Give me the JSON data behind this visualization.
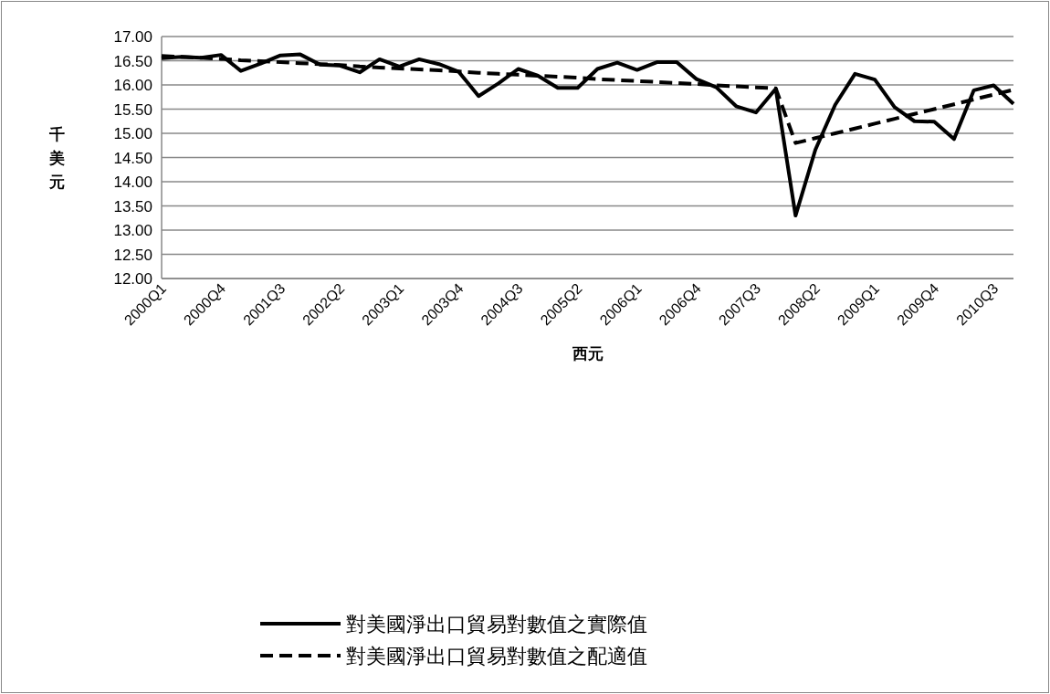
{
  "chart_data": {
    "type": "line",
    "xlabel": "西元",
    "ylabel": "千美元",
    "categories": [
      "2000Q1",
      null,
      null,
      "2000Q4",
      null,
      null,
      "2001Q3",
      null,
      null,
      "2002Q2",
      null,
      null,
      "2003Q1",
      null,
      null,
      "2003Q4",
      null,
      null,
      "2004Q3",
      null,
      null,
      "2005Q2",
      null,
      null,
      "2006Q1",
      null,
      null,
      "2006Q4",
      null,
      null,
      "2007Q3",
      null,
      null,
      "2008Q2",
      null,
      null,
      "2009Q1",
      null,
      null,
      "2009Q4",
      null,
      null,
      "2010Q3",
      null
    ],
    "series": [
      {
        "name": "對美國淨出口貿易對數值之實際值",
        "color": "#000000",
        "line_style": "solid",
        "values": [
          16.55,
          16.58,
          16.56,
          16.62,
          16.29,
          16.44,
          16.61,
          16.63,
          16.42,
          16.4,
          16.26,
          16.53,
          16.38,
          16.53,
          16.43,
          16.27,
          15.77,
          16.03,
          16.33,
          16.19,
          15.94,
          15.94,
          16.33,
          16.46,
          16.31,
          16.47,
          16.47,
          16.12,
          15.95,
          15.56,
          15.43,
          15.92,
          13.3,
          14.66,
          15.59,
          16.23,
          16.11,
          15.54,
          15.25,
          15.24,
          14.88,
          15.89,
          15.99,
          15.61
        ]
      },
      {
        "name": "對美國淨出口貿易對數值之配適值",
        "color": "#000000",
        "line_style": "dashed",
        "values": [
          16.6,
          16.58,
          16.56,
          16.54,
          16.51,
          16.49,
          16.47,
          16.45,
          16.43,
          16.41,
          16.38,
          16.36,
          16.34,
          16.32,
          16.3,
          16.28,
          16.25,
          16.23,
          16.21,
          16.19,
          16.17,
          16.15,
          16.12,
          16.1,
          16.08,
          16.06,
          16.04,
          16.02,
          15.99,
          15.97,
          15.95,
          15.93,
          14.8,
          14.9,
          15.0,
          15.1,
          15.2,
          15.3,
          15.4,
          15.5,
          15.6,
          15.7,
          15.8,
          15.9
        ]
      }
    ],
    "ylim": [
      12,
      17
    ],
    "yticks": [
      {
        "value": 12,
        "label": "12.00"
      },
      {
        "value": 12.5,
        "label": "12.50"
      },
      {
        "value": 13,
        "label": "13.00"
      },
      {
        "value": 13.5,
        "label": "13.50"
      },
      {
        "value": 14,
        "label": "14.00"
      },
      {
        "value": 14.5,
        "label": "14.50"
      },
      {
        "value": 15,
        "label": "15.00"
      },
      {
        "value": 15.5,
        "label": "15.50"
      },
      {
        "value": 16,
        "label": "16.00"
      },
      {
        "value": 16.5,
        "label": "16.50"
      },
      {
        "value": 17,
        "label": "17.00"
      }
    ],
    "grid": "y",
    "legend": "bottom",
    "marker": "none"
  }
}
